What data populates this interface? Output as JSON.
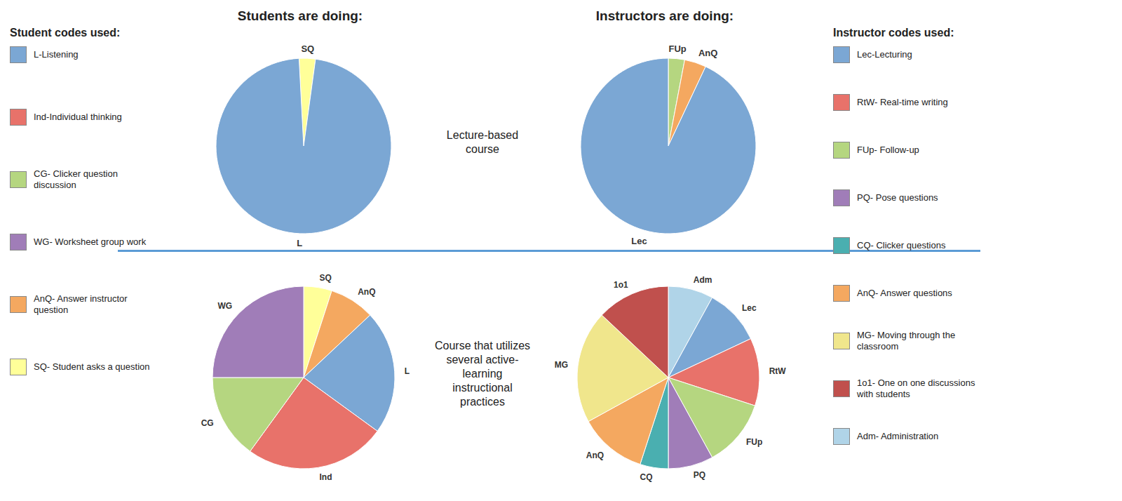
{
  "chart_data": [
    {
      "type": "pie",
      "title": "Students are doing:",
      "annotations": [
        "Lecture-based\ncourse"
      ],
      "categories": [
        "SQ",
        "L"
      ],
      "values": [
        3,
        97
      ],
      "colors": [
        "#FFFF99",
        "#7BA7D4"
      ]
    },
    {
      "type": "pie",
      "title": "Instructors are doing:",
      "categories": [
        "FUp",
        "AnQ",
        "Lec"
      ],
      "values": [
        3,
        4,
        93
      ],
      "colors": [
        "#B5D680",
        "#F4A860",
        "#7BA7D4"
      ]
    },
    {
      "type": "pie",
      "annotations": [
        "Course that utilizes\nseveral active-\nlearning\ninstructional\npractices"
      ],
      "categories": [
        "SQ",
        "AnQ",
        "L",
        "Ind",
        "CG",
        "WG"
      ],
      "values": [
        5,
        8,
        22,
        25,
        15,
        25
      ],
      "colors": [
        "#FFFF99",
        "#F4A860",
        "#7BA7D4",
        "#E8726A",
        "#B5D680",
        "#A07DB8"
      ]
    },
    {
      "type": "pie",
      "categories": [
        "Adm",
        "Lec",
        "RtW",
        "FUp",
        "PQ",
        "CQ",
        "AnQ",
        "MG",
        "1o1"
      ],
      "values": [
        8,
        10,
        12,
        12,
        8,
        5,
        12,
        20,
        13
      ],
      "colors": [
        "#B0D4E8",
        "#7BA7D4",
        "#E8726A",
        "#B5D680",
        "#A07DB8",
        "#4AAFB0",
        "#F4A860",
        "#F0E68C",
        "#C0504D"
      ]
    }
  ],
  "legends": [
    {
      "title": "Student codes used:",
      "series": [
        {
          "name": "L-Listening",
          "color": "#7BA7D4"
        },
        {
          "name": "Ind-Individual thinking",
          "color": "#E8726A"
        },
        {
          "name": "CG- Clicker question\ndiscussion",
          "color": "#B5D680"
        },
        {
          "name": "WG- Worksheet group work",
          "color": "#A07DB8"
        },
        {
          "name": "AnQ- Answer instructor\nquestion",
          "color": "#F4A860"
        },
        {
          "name": "SQ- Student asks a question",
          "color": "#FFFF99"
        }
      ]
    },
    {
      "title": "Instructor codes used:",
      "series": [
        {
          "name": "Lec-Lecturing",
          "color": "#7BA7D4"
        },
        {
          "name": "RtW- Real-time writing",
          "color": "#E8726A"
        },
        {
          "name": "FUp- Follow-up",
          "color": "#B5D680"
        },
        {
          "name": "PQ- Pose questions",
          "color": "#A07DB8"
        },
        {
          "name": "CQ- Clicker questions",
          "color": "#4AAFB0"
        },
        {
          "name": "AnQ- Answer questions",
          "color": "#F4A860"
        },
        {
          "name": "MG- Moving through the\nclassroom",
          "color": "#F0E68C"
        },
        {
          "name": "1o1- One on one discussions\nwith students",
          "color": "#C0504D"
        },
        {
          "name": "Adm- Administration",
          "color": "#B0D4E8"
        }
      ]
    }
  ]
}
